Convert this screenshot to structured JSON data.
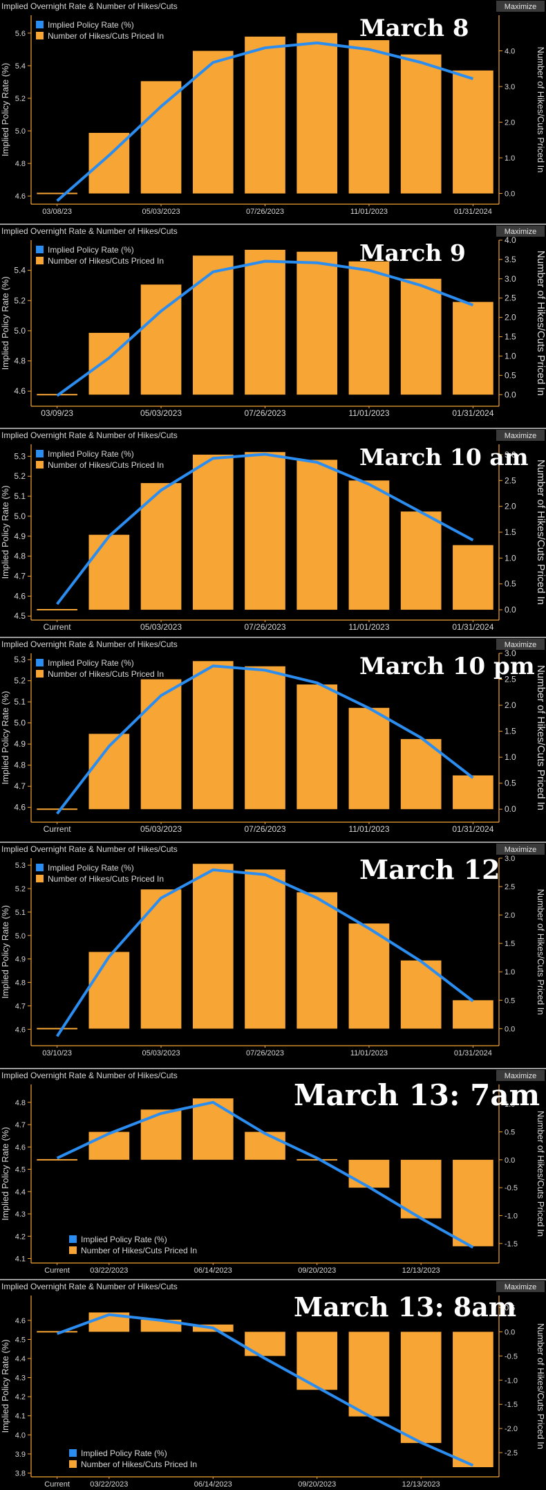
{
  "colors": {
    "bar": "#f7a534",
    "line": "#2b8df0",
    "axis": "#f7a534",
    "text": "#d8d8d8",
    "background": "#000000",
    "button": "#3a3a3a"
  },
  "panel_header": "Implied Overnight Rate & Number of Hikes/Cuts",
  "maximize_label": "Maximize",
  "legend": {
    "line": "Implied Policy Rate (%)",
    "bars": "Number of Hikes/Cuts Priced In"
  },
  "ylabel_left": "Implied Policy Rate (%)",
  "ylabel_right": "Number of Hikes/Cuts Priced In",
  "chart_data": [
    {
      "type": "bar+line",
      "title": "March 8",
      "legend_position": "top-left",
      "x_labels": [
        "03/08/23",
        "05/03/2023",
        "07/26/2023",
        "11/01/2023",
        "01/31/2024"
      ],
      "label_slots": [
        0,
        2,
        4,
        6,
        8
      ],
      "bars": [
        0.0,
        1.7,
        3.15,
        4.0,
        4.4,
        4.5,
        4.3,
        3.9,
        3.45
      ],
      "rate": [
        4.58,
        4.85,
        5.15,
        5.42,
        5.51,
        5.54,
        5.5,
        5.42,
        5.32
      ],
      "line_start": 4.57,
      "ylim_left": [
        4.55,
        5.71
      ],
      "yticks_left": [
        4.6,
        4.8,
        5.0,
        5.2,
        5.4,
        5.6
      ],
      "ylim_right": [
        -0.3,
        5.0
      ],
      "yticks_right": [
        0.0,
        1.0,
        2.0,
        3.0,
        4.0
      ]
    },
    {
      "type": "bar+line",
      "title": "March 9",
      "legend_position": "top-left",
      "x_labels": [
        "03/09/23",
        "05/03/2023",
        "07/26/2023",
        "11/01/2023",
        "01/31/2024"
      ],
      "label_slots": [
        0,
        2,
        4,
        6,
        8
      ],
      "bars": [
        0.0,
        1.6,
        2.85,
        3.6,
        3.75,
        3.7,
        3.45,
        3.0,
        2.4
      ],
      "rate": [
        4.58,
        4.82,
        5.13,
        5.39,
        5.46,
        5.45,
        5.4,
        5.3,
        5.17
      ],
      "line_start": 4.57,
      "ylim_left": [
        4.5,
        5.6
      ],
      "yticks_left": [
        4.6,
        4.8,
        5.0,
        5.2,
        5.4
      ],
      "ylim_right": [
        -0.3,
        4.0
      ],
      "yticks_right": [
        0.0,
        0.5,
        1.0,
        1.5,
        2.0,
        2.5,
        3.0,
        3.5,
        4.0
      ]
    },
    {
      "type": "bar+line",
      "title": "March 10 am",
      "legend_position": "top-left",
      "x_labels": [
        "Current",
        "05/03/2023",
        "07/26/2023",
        "11/01/2023",
        "01/31/2024"
      ],
      "label_slots": [
        0,
        2,
        4,
        6,
        8
      ],
      "bars": [
        0.0,
        1.45,
        2.45,
        3.0,
        3.05,
        2.9,
        2.5,
        1.9,
        1.25
      ],
      "rate": [
        4.57,
        4.9,
        5.13,
        5.29,
        5.31,
        5.27,
        5.16,
        5.02,
        4.88
      ],
      "line_start": 4.56,
      "ylim_left": [
        4.48,
        5.36
      ],
      "yticks_left": [
        4.5,
        4.6,
        4.7,
        4.8,
        4.9,
        5.0,
        5.1,
        5.2,
        5.3
      ],
      "ylim_right": [
        -0.2,
        3.2
      ],
      "yticks_right": [
        0.0,
        0.5,
        1.0,
        1.5,
        2.0,
        2.5,
        3.0
      ]
    },
    {
      "type": "bar+line",
      "title": "March 10 pm",
      "legend_position": "top-left",
      "x_labels": [
        "Current",
        "05/03/2023",
        "07/26/2023",
        "11/01/2023",
        "01/31/2024"
      ],
      "label_slots": [
        0,
        2,
        4,
        6,
        8
      ],
      "bars": [
        0.0,
        1.45,
        2.5,
        2.85,
        2.75,
        2.4,
        1.95,
        1.35,
        0.65
      ],
      "rate": [
        4.57,
        4.89,
        5.13,
        5.27,
        5.25,
        5.19,
        5.07,
        4.93,
        4.74
      ],
      "line_start": 4.57,
      "ylim_left": [
        4.53,
        5.33
      ],
      "yticks_left": [
        4.6,
        4.7,
        4.8,
        4.9,
        5.0,
        5.1,
        5.2,
        5.3
      ],
      "ylim_right": [
        -0.25,
        3.0
      ],
      "yticks_right": [
        0.0,
        0.5,
        1.0,
        1.5,
        2.0,
        2.5,
        3.0
      ]
    },
    {
      "type": "bar+line",
      "title": "March 12",
      "legend_position": "top-left",
      "x_labels": [
        "03/10/23",
        "05/03/2023",
        "07/26/2023",
        "11/01/2023",
        "01/31/2024"
      ],
      "label_slots": [
        0,
        2,
        4,
        6,
        8
      ],
      "bars": [
        0.0,
        1.35,
        2.45,
        2.9,
        2.8,
        2.4,
        1.85,
        1.2,
        0.5
      ],
      "rate": [
        4.58,
        4.91,
        5.16,
        5.28,
        5.26,
        5.16,
        5.03,
        4.89,
        4.72
      ],
      "line_start": 4.57,
      "ylim_left": [
        4.53,
        5.33
      ],
      "yticks_left": [
        4.6,
        4.7,
        4.8,
        4.9,
        5.0,
        5.1,
        5.2,
        5.3
      ],
      "ylim_right": [
        -0.3,
        3.0
      ],
      "yticks_right": [
        0.0,
        0.5,
        1.0,
        1.5,
        2.0,
        2.5,
        3.0
      ]
    },
    {
      "type": "bar+line",
      "title": "March 13: 7am",
      "legend_position": "bottom-left",
      "x_labels": [
        "Current",
        "03/22/2023",
        "06/14/2023",
        "09/20/2023",
        "12/13/2023"
      ],
      "label_slots": [
        0,
        1,
        3,
        5,
        7
      ],
      "bars": [
        0.0,
        0.5,
        0.9,
        1.1,
        0.5,
        0.0,
        -0.5,
        -1.05,
        -1.55
      ],
      "rate": [
        4.55,
        4.66,
        4.75,
        4.8,
        4.66,
        4.55,
        4.42,
        4.28,
        4.15
      ],
      "line_start": 4.55,
      "ylim_left": [
        4.08,
        4.88
      ],
      "yticks_left": [
        4.1,
        4.2,
        4.3,
        4.4,
        4.5,
        4.6,
        4.7,
        4.8
      ],
      "ylim_right": [
        -1.85,
        1.35
      ],
      "yticks_right": [
        -1.5,
        -1.0,
        -0.5,
        0.0,
        0.5,
        1.0
      ]
    },
    {
      "type": "bar+line",
      "title": "March 13: 8am",
      "legend_position": "bottom-left",
      "x_labels": [
        "Current",
        "03/22/2023",
        "06/14/2023",
        "09/20/2023",
        "12/13/2023"
      ],
      "label_slots": [
        0,
        1,
        3,
        5,
        7
      ],
      "bars": [
        0.0,
        0.4,
        0.25,
        0.15,
        -0.5,
        -1.2,
        -1.75,
        -2.3,
        -2.8
      ],
      "rate": [
        4.53,
        4.63,
        4.6,
        4.56,
        4.4,
        4.25,
        4.1,
        3.96,
        3.84
      ],
      "line_start": 4.53,
      "ylim_left": [
        3.78,
        4.73
      ],
      "yticks_left": [
        3.8,
        3.9,
        4.0,
        4.1,
        4.2,
        4.3,
        4.4,
        4.5,
        4.6
      ],
      "ylim_right": [
        -3.0,
        0.75
      ],
      "yticks_right": [
        -2.5,
        -2.0,
        -1.5,
        -1.0,
        -0.5,
        0.0,
        0.5
      ]
    }
  ]
}
